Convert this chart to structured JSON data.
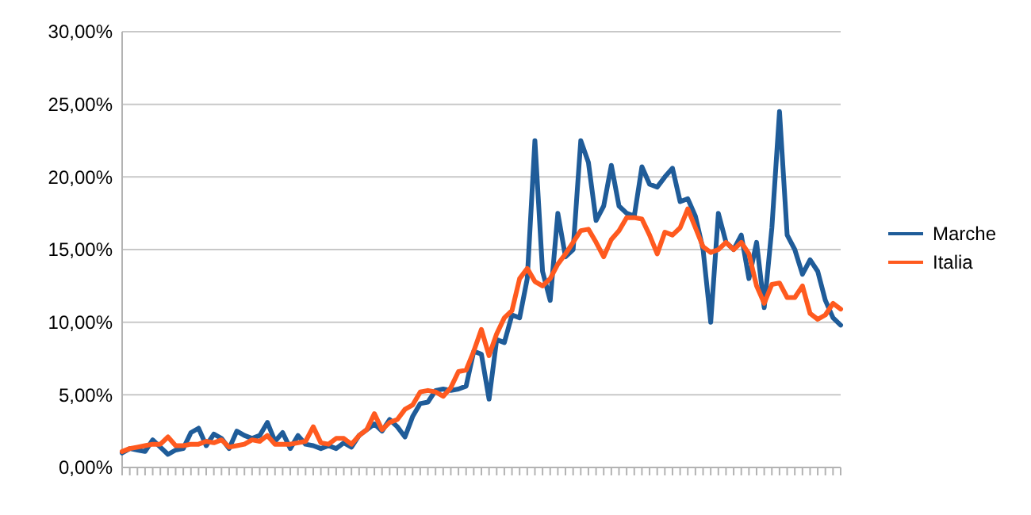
{
  "chart_data": {
    "type": "line",
    "categories": [
      null,
      null,
      null,
      null,
      null,
      null,
      null,
      null,
      null,
      null,
      null,
      null,
      null,
      null,
      null,
      null,
      null,
      null,
      null,
      null,
      null,
      null,
      null,
      null,
      null,
      null,
      null,
      null,
      null,
      null,
      null,
      null,
      null,
      null,
      null,
      null,
      null,
      null,
      null,
      null,
      null,
      null,
      null,
      null,
      null,
      null,
      null,
      null,
      null,
      null,
      null,
      null,
      null,
      null,
      null,
      null,
      null,
      null,
      null,
      null,
      null,
      null,
      null,
      null,
      null,
      null,
      null,
      null,
      null,
      null,
      null,
      null,
      null,
      null,
      null,
      null,
      null,
      null,
      null,
      null,
      null,
      null,
      null,
      null,
      null,
      null,
      null,
      null,
      null,
      null,
      null,
      null,
      null,
      null,
      null
    ],
    "series": [
      {
        "name": "Marche",
        "color": "#1f5c99",
        "values": [
          1.0,
          1.3,
          1.2,
          1.1,
          1.9,
          1.4,
          0.9,
          1.2,
          1.3,
          2.4,
          2.7,
          1.5,
          2.3,
          2.0,
          1.3,
          2.5,
          2.2,
          2.0,
          2.2,
          3.1,
          1.8,
          2.4,
          1.3,
          2.2,
          1.6,
          1.5,
          1.3,
          1.5,
          1.3,
          1.7,
          1.4,
          2.2,
          2.6,
          3.0,
          2.5,
          3.3,
          2.8,
          2.1,
          3.5,
          4.4,
          4.5,
          5.3,
          5.4,
          5.3,
          5.4,
          5.6,
          8.0,
          7.8,
          4.7,
          8.8,
          8.6,
          10.5,
          10.3,
          13.0,
          22.5,
          13.5,
          11.5,
          17.5,
          14.5,
          15.0,
          22.5,
          21.0,
          17.0,
          18.0,
          20.8,
          18.0,
          17.5,
          17.3,
          20.7,
          19.5,
          19.3,
          20.0,
          20.6,
          18.3,
          18.5,
          17.3,
          15.0,
          10.0,
          17.5,
          15.5,
          15.0,
          16.0,
          13.0,
          15.5,
          11.0,
          16.5,
          24.5,
          16.0,
          15.0,
          13.3,
          14.3,
          13.5,
          11.5,
          10.3,
          9.8
        ]
      },
      {
        "name": "Italia",
        "color": "#ff5a1f",
        "values": [
          1.1,
          1.3,
          1.4,
          1.5,
          1.6,
          1.6,
          2.1,
          1.5,
          1.5,
          1.6,
          1.6,
          1.8,
          1.7,
          1.9,
          1.4,
          1.5,
          1.6,
          1.9,
          1.8,
          2.2,
          1.6,
          1.6,
          1.6,
          1.7,
          1.8,
          2.8,
          1.7,
          1.6,
          2.0,
          2.0,
          1.6,
          2.2,
          2.6,
          3.7,
          2.6,
          3.1,
          3.3,
          4.0,
          4.3,
          5.2,
          5.3,
          5.2,
          4.9,
          5.5,
          6.6,
          6.7,
          8.0,
          9.5,
          7.7,
          9.2,
          10.3,
          10.8,
          13.0,
          13.7,
          12.8,
          12.5,
          13.0,
          14.0,
          14.7,
          15.5,
          16.3,
          16.4,
          15.5,
          14.5,
          15.7,
          16.3,
          17.2,
          17.2,
          17.1,
          16.0,
          14.7,
          16.2,
          16.0,
          16.5,
          17.8,
          16.5,
          15.2,
          14.8,
          15.0,
          15.5,
          15.0,
          15.5,
          14.7,
          12.5,
          11.3,
          12.6,
          12.7,
          11.7,
          11.7,
          12.5,
          10.6,
          10.2,
          10.5,
          11.3,
          10.9
        ]
      }
    ],
    "ylim": [
      0,
      30
    ],
    "yticks": [
      {
        "value": 0,
        "label": "0,00%"
      },
      {
        "value": 5,
        "label": "5,00%"
      },
      {
        "value": 10,
        "label": "10,00%"
      },
      {
        "value": 15,
        "label": "15,00%"
      },
      {
        "value": 20,
        "label": "20,00%"
      },
      {
        "value": 25,
        "label": "25,00%"
      },
      {
        "value": 30,
        "label": "30,00%"
      }
    ],
    "grid": "y",
    "legend": "right",
    "tick_labels": "y",
    "marker": "none",
    "line_style": "solid"
  }
}
